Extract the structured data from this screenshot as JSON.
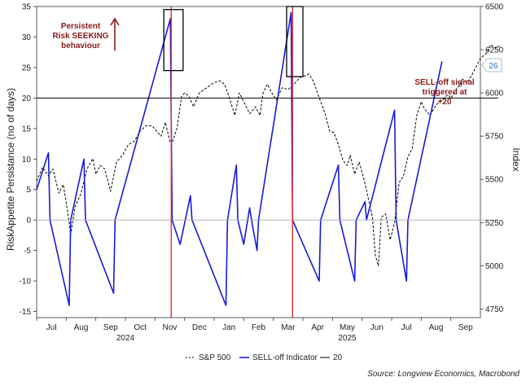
{
  "chart_data": {
    "type": "line",
    "ylabel_left": "RiskAppetite Persistance (no of days)",
    "ylabel_right": "Index",
    "y_left": {
      "range": [
        -16,
        35
      ],
      "ticks": [
        "35",
        "30",
        "25",
        "20",
        "15",
        "10",
        "5",
        "0",
        "-5",
        "-10",
        "-15"
      ]
    },
    "y_right": {
      "range": [
        4700,
        6500
      ],
      "ticks": [
        "6500",
        "6250",
        "6000",
        "5750",
        "5500",
        "5250",
        "5000",
        "4750"
      ]
    },
    "x_months": [
      "Jul",
      "Aug",
      "Sep",
      "Oct",
      "Nov",
      "Dec",
      "Jan",
      "Feb",
      "Mar",
      "Apr",
      "May",
      "Jun",
      "Jul",
      "Aug",
      "Sep"
    ],
    "x_years": [
      {
        "label": "2024",
        "month_index": 3
      },
      {
        "label": "2025",
        "month_index": 10.5
      }
    ],
    "series": [
      {
        "name": "S&P 500",
        "axis": "right",
        "style": "dashed",
        "color": "#000000",
        "points": [
          [
            0,
            5490
          ],
          [
            0.2,
            5570
          ],
          [
            0.4,
            5520
          ],
          [
            0.55,
            5560
          ],
          [
            0.75,
            5420
          ],
          [
            0.9,
            5470
          ],
          [
            1.05,
            5310
          ],
          [
            1.15,
            5180
          ],
          [
            1.3,
            5340
          ],
          [
            1.5,
            5420
          ],
          [
            1.7,
            5560
          ],
          [
            1.9,
            5620
          ],
          [
            2.0,
            5530
          ],
          [
            2.15,
            5580
          ],
          [
            2.3,
            5560
          ],
          [
            2.5,
            5430
          ],
          [
            2.7,
            5600
          ],
          [
            2.9,
            5640
          ],
          [
            3.1,
            5700
          ],
          [
            3.3,
            5720
          ],
          [
            3.5,
            5780
          ],
          [
            3.7,
            5810
          ],
          [
            3.9,
            5810
          ],
          [
            4.05,
            5780
          ],
          [
            4.2,
            5750
          ],
          [
            4.35,
            5830
          ],
          [
            4.5,
            5720
          ],
          [
            4.6,
            5720
          ],
          [
            4.75,
            5800
          ],
          [
            4.9,
            5980
          ],
          [
            5.0,
            6000
          ],
          [
            5.15,
            5980
          ],
          [
            5.3,
            5920
          ],
          [
            5.5,
            6000
          ],
          [
            5.75,
            6030
          ],
          [
            6.0,
            6060
          ],
          [
            6.2,
            6070
          ],
          [
            6.35,
            6050
          ],
          [
            6.5,
            5980
          ],
          [
            6.7,
            5870
          ],
          [
            6.85,
            6000
          ],
          [
            7.0,
            5950
          ],
          [
            7.2,
            5880
          ],
          [
            7.4,
            5920
          ],
          [
            7.55,
            5870
          ],
          [
            7.65,
            6000
          ],
          [
            7.8,
            6050
          ],
          [
            7.95,
            6000
          ],
          [
            8.1,
            5960
          ],
          [
            8.3,
            6030
          ],
          [
            8.5,
            6020
          ],
          [
            8.7,
            6050
          ],
          [
            8.9,
            6090
          ],
          [
            9.1,
            6100
          ],
          [
            9.2,
            6110
          ],
          [
            9.35,
            6070
          ],
          [
            9.45,
            6020
          ],
          [
            9.6,
            5950
          ],
          [
            9.75,
            5880
          ],
          [
            9.9,
            5780
          ],
          [
            10.05,
            5770
          ],
          [
            10.2,
            5700
          ],
          [
            10.35,
            5610
          ],
          [
            10.5,
            5580
          ],
          [
            10.6,
            5640
          ],
          [
            10.75,
            5530
          ],
          [
            10.9,
            5600
          ],
          [
            11.05,
            5510
          ],
          [
            11.2,
            5400
          ],
          [
            11.35,
            5280
          ],
          [
            11.45,
            5060
          ],
          [
            11.55,
            5000
          ],
          [
            11.65,
            5280
          ],
          [
            11.8,
            5300
          ],
          [
            11.95,
            5150
          ],
          [
            12.1,
            5250
          ],
          [
            12.25,
            5480
          ],
          [
            12.4,
            5520
          ],
          [
            12.55,
            5630
          ],
          [
            12.7,
            5680
          ],
          [
            12.85,
            5870
          ],
          [
            13.0,
            5950
          ],
          [
            13.1,
            5910
          ],
          [
            13.3,
            5870
          ],
          [
            13.5,
            5930
          ],
          [
            13.7,
            5960
          ],
          [
            13.9,
            5990
          ],
          [
            14.0,
            5970
          ],
          [
            14.2,
            6020
          ],
          [
            14.4,
            6080
          ],
          [
            14.55,
            6060
          ],
          [
            14.7,
            6100
          ],
          [
            14.85,
            6150
          ],
          [
            15.0,
            6200
          ],
          [
            15.2,
            6230
          ],
          [
            15.35,
            6280
          ],
          [
            15.5,
            6260
          ],
          [
            15.65,
            6270
          ]
        ]
      },
      {
        "name": "SELL-off Indicator",
        "axis": "left",
        "style": "solid",
        "color": "#1a1ad6",
        "points": [
          [
            0,
            5
          ],
          [
            0.4,
            11
          ],
          [
            0.45,
            0
          ],
          [
            1.1,
            -14
          ],
          [
            1.15,
            0
          ],
          [
            1.6,
            10
          ],
          [
            1.65,
            0
          ],
          [
            2.6,
            -12
          ],
          [
            2.65,
            0
          ],
          [
            4.52,
            33
          ],
          [
            4.58,
            0
          ],
          [
            4.85,
            -4
          ],
          [
            5.2,
            4
          ],
          [
            5.25,
            0
          ],
          [
            6.4,
            -14
          ],
          [
            6.45,
            0
          ],
          [
            6.75,
            9
          ],
          [
            6.8,
            0
          ],
          [
            7.0,
            -4
          ],
          [
            7.2,
            2
          ],
          [
            7.3,
            -1
          ],
          [
            7.45,
            -5
          ],
          [
            7.5,
            0
          ],
          [
            8.6,
            34
          ],
          [
            8.65,
            0
          ],
          [
            9.55,
            -10
          ],
          [
            9.6,
            0
          ],
          [
            10.2,
            9
          ],
          [
            10.25,
            0
          ],
          [
            10.75,
            -10
          ],
          [
            10.8,
            0
          ],
          [
            11.1,
            3
          ],
          [
            11.15,
            0
          ],
          [
            12.1,
            18
          ],
          [
            12.15,
            0
          ],
          [
            12.5,
            -10
          ],
          [
            12.55,
            0
          ],
          [
            13.7,
            26
          ]
        ]
      },
      {
        "name": "20",
        "axis": "left",
        "style": "solid",
        "color": "#000000",
        "points": [
          [
            0,
            20
          ],
          [
            15.6,
            20
          ]
        ]
      },
      {
        "name": "zero",
        "axis": "left",
        "style": "solid",
        "color": "#aaaaaa",
        "points": [
          [
            0,
            0
          ],
          [
            15.6,
            0
          ]
        ]
      }
    ],
    "vlines": [
      {
        "x": 4.55,
        "color": "#e03030"
      },
      {
        "x": 8.65,
        "color": "#e03030"
      }
    ],
    "boxes": [
      {
        "x0": 4.3,
        "x1": 4.95,
        "y0": 24.5,
        "y1": 34.5
      },
      {
        "x0": 8.45,
        "x1": 9.0,
        "y0": 23.5,
        "y1": 35
      }
    ],
    "annotations": {
      "persistent": [
        "Persistent",
        "Risk SEEKING",
        "behaviour"
      ],
      "selloff": [
        "SELL-off signal",
        "triggered at",
        "+20"
      ]
    },
    "last_value_badge": "26",
    "legend": [
      "S&P 500",
      "SELL-off Indicator",
      "20"
    ],
    "source": "Source: Longview Economics, Macrobond"
  }
}
